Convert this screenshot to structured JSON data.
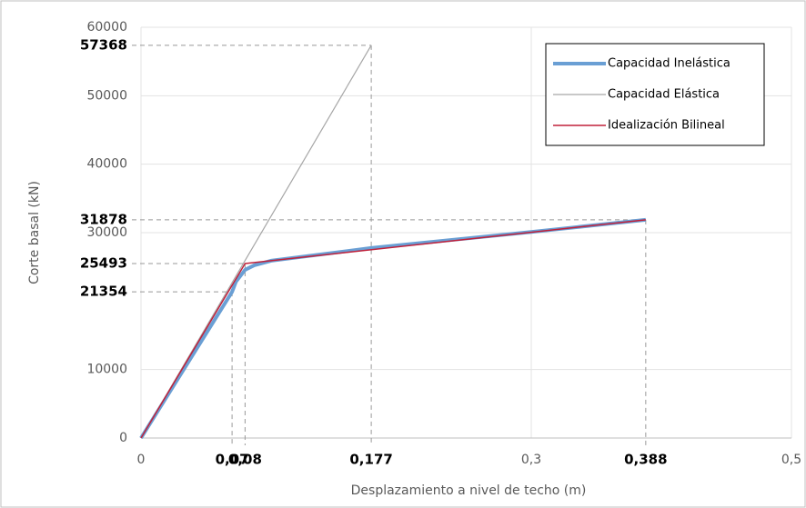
{
  "chart_data": {
    "type": "line",
    "x_label": "Desplazamiento a nivel de techo (m)",
    "y_label": "Corte basal (kN)",
    "xlim": [
      0,
      0.5
    ],
    "ylim": [
      0,
      60000
    ],
    "xticks": [
      0,
      {
        "value": 0.3,
        "label": "0,3"
      },
      {
        "value": 0.5,
        "label": "0,5"
      }
    ],
    "yticks": [
      0,
      10000,
      30000,
      40000,
      50000,
      60000
    ],
    "grid": true,
    "legend": "upper right",
    "series": [
      {
        "name": "Capacidad Inelástica",
        "color": "#6a9fd4",
        "width": 4,
        "x": [
          0,
          0.07,
          0.073,
          0.08,
          0.087,
          0.1,
          0.177,
          0.3,
          0.388
        ],
        "values": [
          0,
          21354,
          22840,
          24570,
          25230,
          25900,
          27755,
          30100,
          31878
        ]
      },
      {
        "name": "Capacidad Elástica",
        "color": "#a6a6a6",
        "width": 1.2,
        "x": [
          0,
          0.177
        ],
        "values": [
          0,
          57368
        ]
      },
      {
        "name": "Idealización Bilineal",
        "color": "#c0203a",
        "width": 1.5,
        "x": [
          0,
          0.08,
          0.388
        ],
        "values": [
          0,
          25493,
          31878
        ]
      }
    ],
    "reference_points": [
      {
        "x": {
          "value": 0.07,
          "label": "0,07"
        },
        "y": 21354
      },
      {
        "x": {
          "value": 0.08,
          "label": "0,08"
        },
        "y": 25493
      },
      {
        "x": {
          "value": 0.177,
          "label": "0,177"
        },
        "y": 57368
      },
      {
        "x": {
          "value": 0.388,
          "label": "0,388"
        },
        "y": 31878
      }
    ]
  }
}
